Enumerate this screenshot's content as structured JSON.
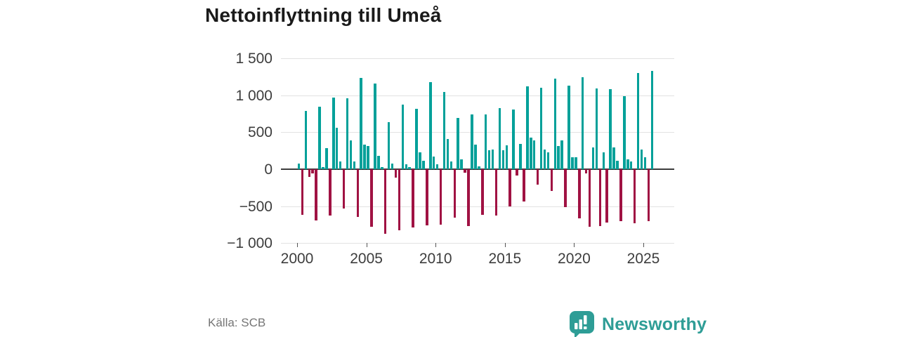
{
  "header": {
    "title": "Nettoinflyttning till Umeå"
  },
  "footer": {
    "source": "Källa: SCB",
    "brand": "Newsworthy"
  },
  "colors": {
    "positive_bar": "#00a099",
    "negative_bar": "#a01243",
    "brand_teal": "#2e9d96",
    "grid": "#e2e2e2",
    "zero_line": "#3c3c3c",
    "title_text": "#1a1a1a",
    "axis_text": "#3d3d3d",
    "source_text": "#757575"
  },
  "chart_data": {
    "type": "bar",
    "title": "Nettoinflyttning till Umeå",
    "xlabel": "",
    "ylabel": "",
    "grid": true,
    "legend": false,
    "ylim": [
      -1000,
      1500
    ],
    "y_ticks": [
      {
        "value": 1500,
        "label": "1 500"
      },
      {
        "value": 1000,
        "label": "1 000"
      },
      {
        "value": 500,
        "label": "500"
      },
      {
        "value": 0,
        "label": "0"
      },
      {
        "value": -500,
        "label": "−500"
      },
      {
        "value": -1000,
        "label": "−1 000"
      }
    ],
    "x_ticks": [
      {
        "year": 2000,
        "label": "2000"
      },
      {
        "year": 2005,
        "label": "2005"
      },
      {
        "year": 2010,
        "label": "2010"
      },
      {
        "year": 2015,
        "label": "2015"
      },
      {
        "year": 2020,
        "label": "2020"
      },
      {
        "year": 2025,
        "label": "2025"
      }
    ],
    "frequency": "quarterly",
    "start_year": 2000,
    "years": [
      {
        "year": 2000,
        "values": [
          80,
          -620,
          790,
          -105
        ]
      },
      {
        "year": 2001,
        "values": [
          -55,
          -690,
          845,
          25
        ]
      },
      {
        "year": 2002,
        "values": [
          280,
          -630,
          965,
          560
        ]
      },
      {
        "year": 2003,
        "values": [
          100,
          -530,
          960,
          385
        ]
      },
      {
        "year": 2004,
        "values": [
          105,
          -645,
          1230,
          330
        ]
      },
      {
        "year": 2005,
        "values": [
          315,
          -780,
          1160,
          180
        ]
      },
      {
        "year": 2006,
        "values": [
          25,
          -875,
          635,
          75
        ]
      },
      {
        "year": 2007,
        "values": [
          -110,
          -830,
          870,
          65
        ]
      },
      {
        "year": 2008,
        "values": [
          30,
          -790,
          815,
          230
        ]
      },
      {
        "year": 2009,
        "values": [
          110,
          -755,
          1175,
          170
        ]
      },
      {
        "year": 2010,
        "values": [
          65,
          -745,
          1040,
          410
        ]
      },
      {
        "year": 2011,
        "values": [
          100,
          -650,
          695,
          135
        ]
      },
      {
        "year": 2012,
        "values": [
          -45,
          -770,
          740,
          330
        ]
      },
      {
        "year": 2013,
        "values": [
          40,
          -615,
          740,
          255
        ]
      },
      {
        "year": 2014,
        "values": [
          270,
          -625,
          830,
          260
        ]
      },
      {
        "year": 2015,
        "values": [
          325,
          -505,
          805,
          -85
        ]
      },
      {
        "year": 2016,
        "values": [
          345,
          -435,
          1115,
          425
        ]
      },
      {
        "year": 2017,
        "values": [
          385,
          -210,
          1100,
          270
        ]
      },
      {
        "year": 2018,
        "values": [
          230,
          -290,
          1220,
          310
        ]
      },
      {
        "year": 2019,
        "values": [
          390,
          -515,
          1125,
          160
        ]
      },
      {
        "year": 2020,
        "values": [
          160,
          -660,
          1240,
          -55
        ]
      },
      {
        "year": 2021,
        "values": [
          -780,
          295,
          1095,
          -765
        ]
      },
      {
        "year": 2022,
        "values": [
          225,
          -725,
          1080,
          295
        ]
      },
      {
        "year": 2023,
        "values": [
          110,
          -700,
          990,
          130
        ]
      },
      {
        "year": 2024,
        "values": [
          100,
          -735,
          1300,
          270
        ]
      },
      {
        "year": 2025,
        "values": [
          160,
          -700,
          1330
        ]
      }
    ]
  }
}
